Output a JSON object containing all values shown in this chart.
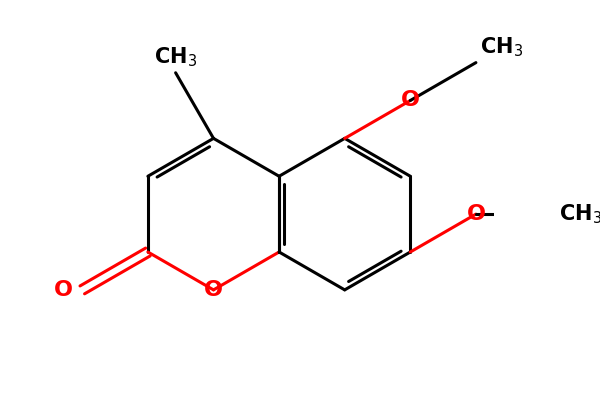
{
  "bg_color": "#ffffff",
  "bond_color": "#000000",
  "heteroatom_color": "#ff0000",
  "line_width": 2.2,
  "dbo": 0.06,
  "figsize": [
    6.0,
    4.0
  ],
  "dpi": 100,
  "xlim": [
    -1.0,
    5.5
  ],
  "ylim": [
    -0.5,
    3.8
  ],
  "bl": 1.0
}
